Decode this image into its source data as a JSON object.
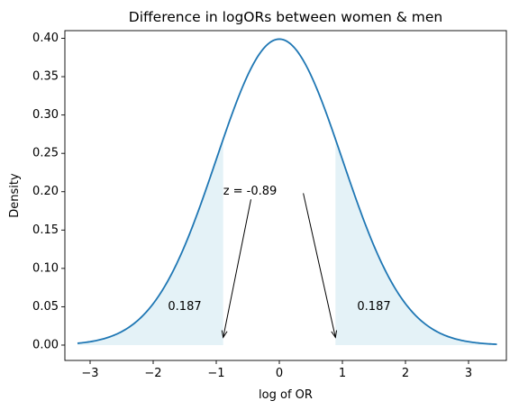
{
  "chart_data": {
    "type": "line",
    "title": "Difference in logORs between women & men",
    "xlabel": "log of OR",
    "ylabel": "Density",
    "xlim": [
      -3.4,
      3.6
    ],
    "ylim": [
      -0.02,
      0.41
    ],
    "xticks": [
      -3,
      -2,
      -1,
      0,
      1,
      2,
      3
    ],
    "xtick_labels": [
      "−3",
      "−2",
      "−1",
      "0",
      "1",
      "2",
      "3"
    ],
    "yticks": [
      0.0,
      0.05,
      0.1,
      0.15,
      0.2,
      0.25,
      0.3,
      0.35,
      0.4
    ],
    "ytick_labels": [
      "0.00",
      "0.05",
      "0.10",
      "0.15",
      "0.20",
      "0.25",
      "0.30",
      "0.35",
      "0.40"
    ],
    "grid": false,
    "series": [
      {
        "distribution": "standard normal",
        "x_range": [
          -3.2,
          3.45
        ],
        "color": "#1f77b4"
      }
    ],
    "shaded_regions": [
      {
        "x_range": [
          -3.2,
          -0.89
        ],
        "color": "#add8e6",
        "label": "0.187",
        "label_at": [
          -1.5,
          0.05
        ]
      },
      {
        "x_range": [
          0.89,
          3.45
        ],
        "color": "#add8e6",
        "label": "0.187",
        "label_at": [
          1.5,
          0.05
        ]
      }
    ],
    "annotations": [
      {
        "text": "z = -0.89",
        "text_at": [
          -0.89,
          0.2
        ],
        "arrow_from": [
          -0.45,
          0.19
        ],
        "arrow_to": [
          -0.89,
          0.01
        ]
      },
      {
        "text": "",
        "arrow_from": [
          0.38,
          0.198
        ],
        "arrow_to": [
          0.89,
          0.01
        ]
      }
    ]
  }
}
